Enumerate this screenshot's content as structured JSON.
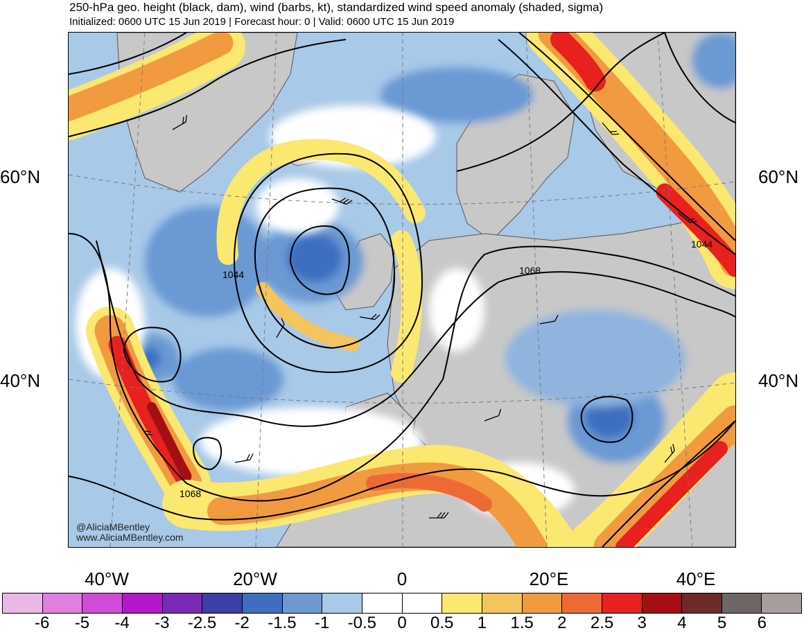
{
  "header": {
    "title": "250-hPa geo. height (black, dam), wind (barbs, kt), standardized wind speed anomaly (shaded, sigma)",
    "subtitle": "Initialized: 0600 UTC 15 Jun 2019 | Forecast hour: 0 | Valid: 0600 UTC 15 Jun 2019"
  },
  "map": {
    "lat_labels": {
      "left_60": "60°N",
      "right_60": "60°N",
      "left_40": "40°N",
      "right_40": "40°N"
    },
    "lon_labels": [
      "40°W",
      "20°W",
      "0",
      "20°E",
      "40°E"
    ],
    "contour_labels": [
      "1044",
      "1068",
      "1044",
      "1068"
    ],
    "contour_color": "#000000",
    "land_color": "#c8c8c8",
    "coastline_color": "#555555"
  },
  "credits": {
    "handle": "@AliciaMBentley",
    "website": "www.AliciaMBentley.com"
  },
  "colorbar": {
    "colors": [
      "#ebb8e6",
      "#e27ee0",
      "#d14bd9",
      "#b417cc",
      "#7a2ab8",
      "#3e3ea8",
      "#3d6ec0",
      "#6b99d4",
      "#a8c9e8",
      "#ffffff",
      "#ffffff",
      "#fbe870",
      "#f5c45c",
      "#f29a3f",
      "#ee6a35",
      "#e8201e",
      "#a30f14",
      "#6e2a2a",
      "#6e6565",
      "#a89c9c"
    ],
    "labels": [
      "-6",
      "-5",
      "-4",
      "-3",
      "-2.5",
      "-2",
      "-1.5",
      "-1",
      "-0.5",
      "0",
      "0.5",
      "1",
      "1.5",
      "2",
      "2.5",
      "3",
      "4",
      "5",
      "6"
    ]
  }
}
